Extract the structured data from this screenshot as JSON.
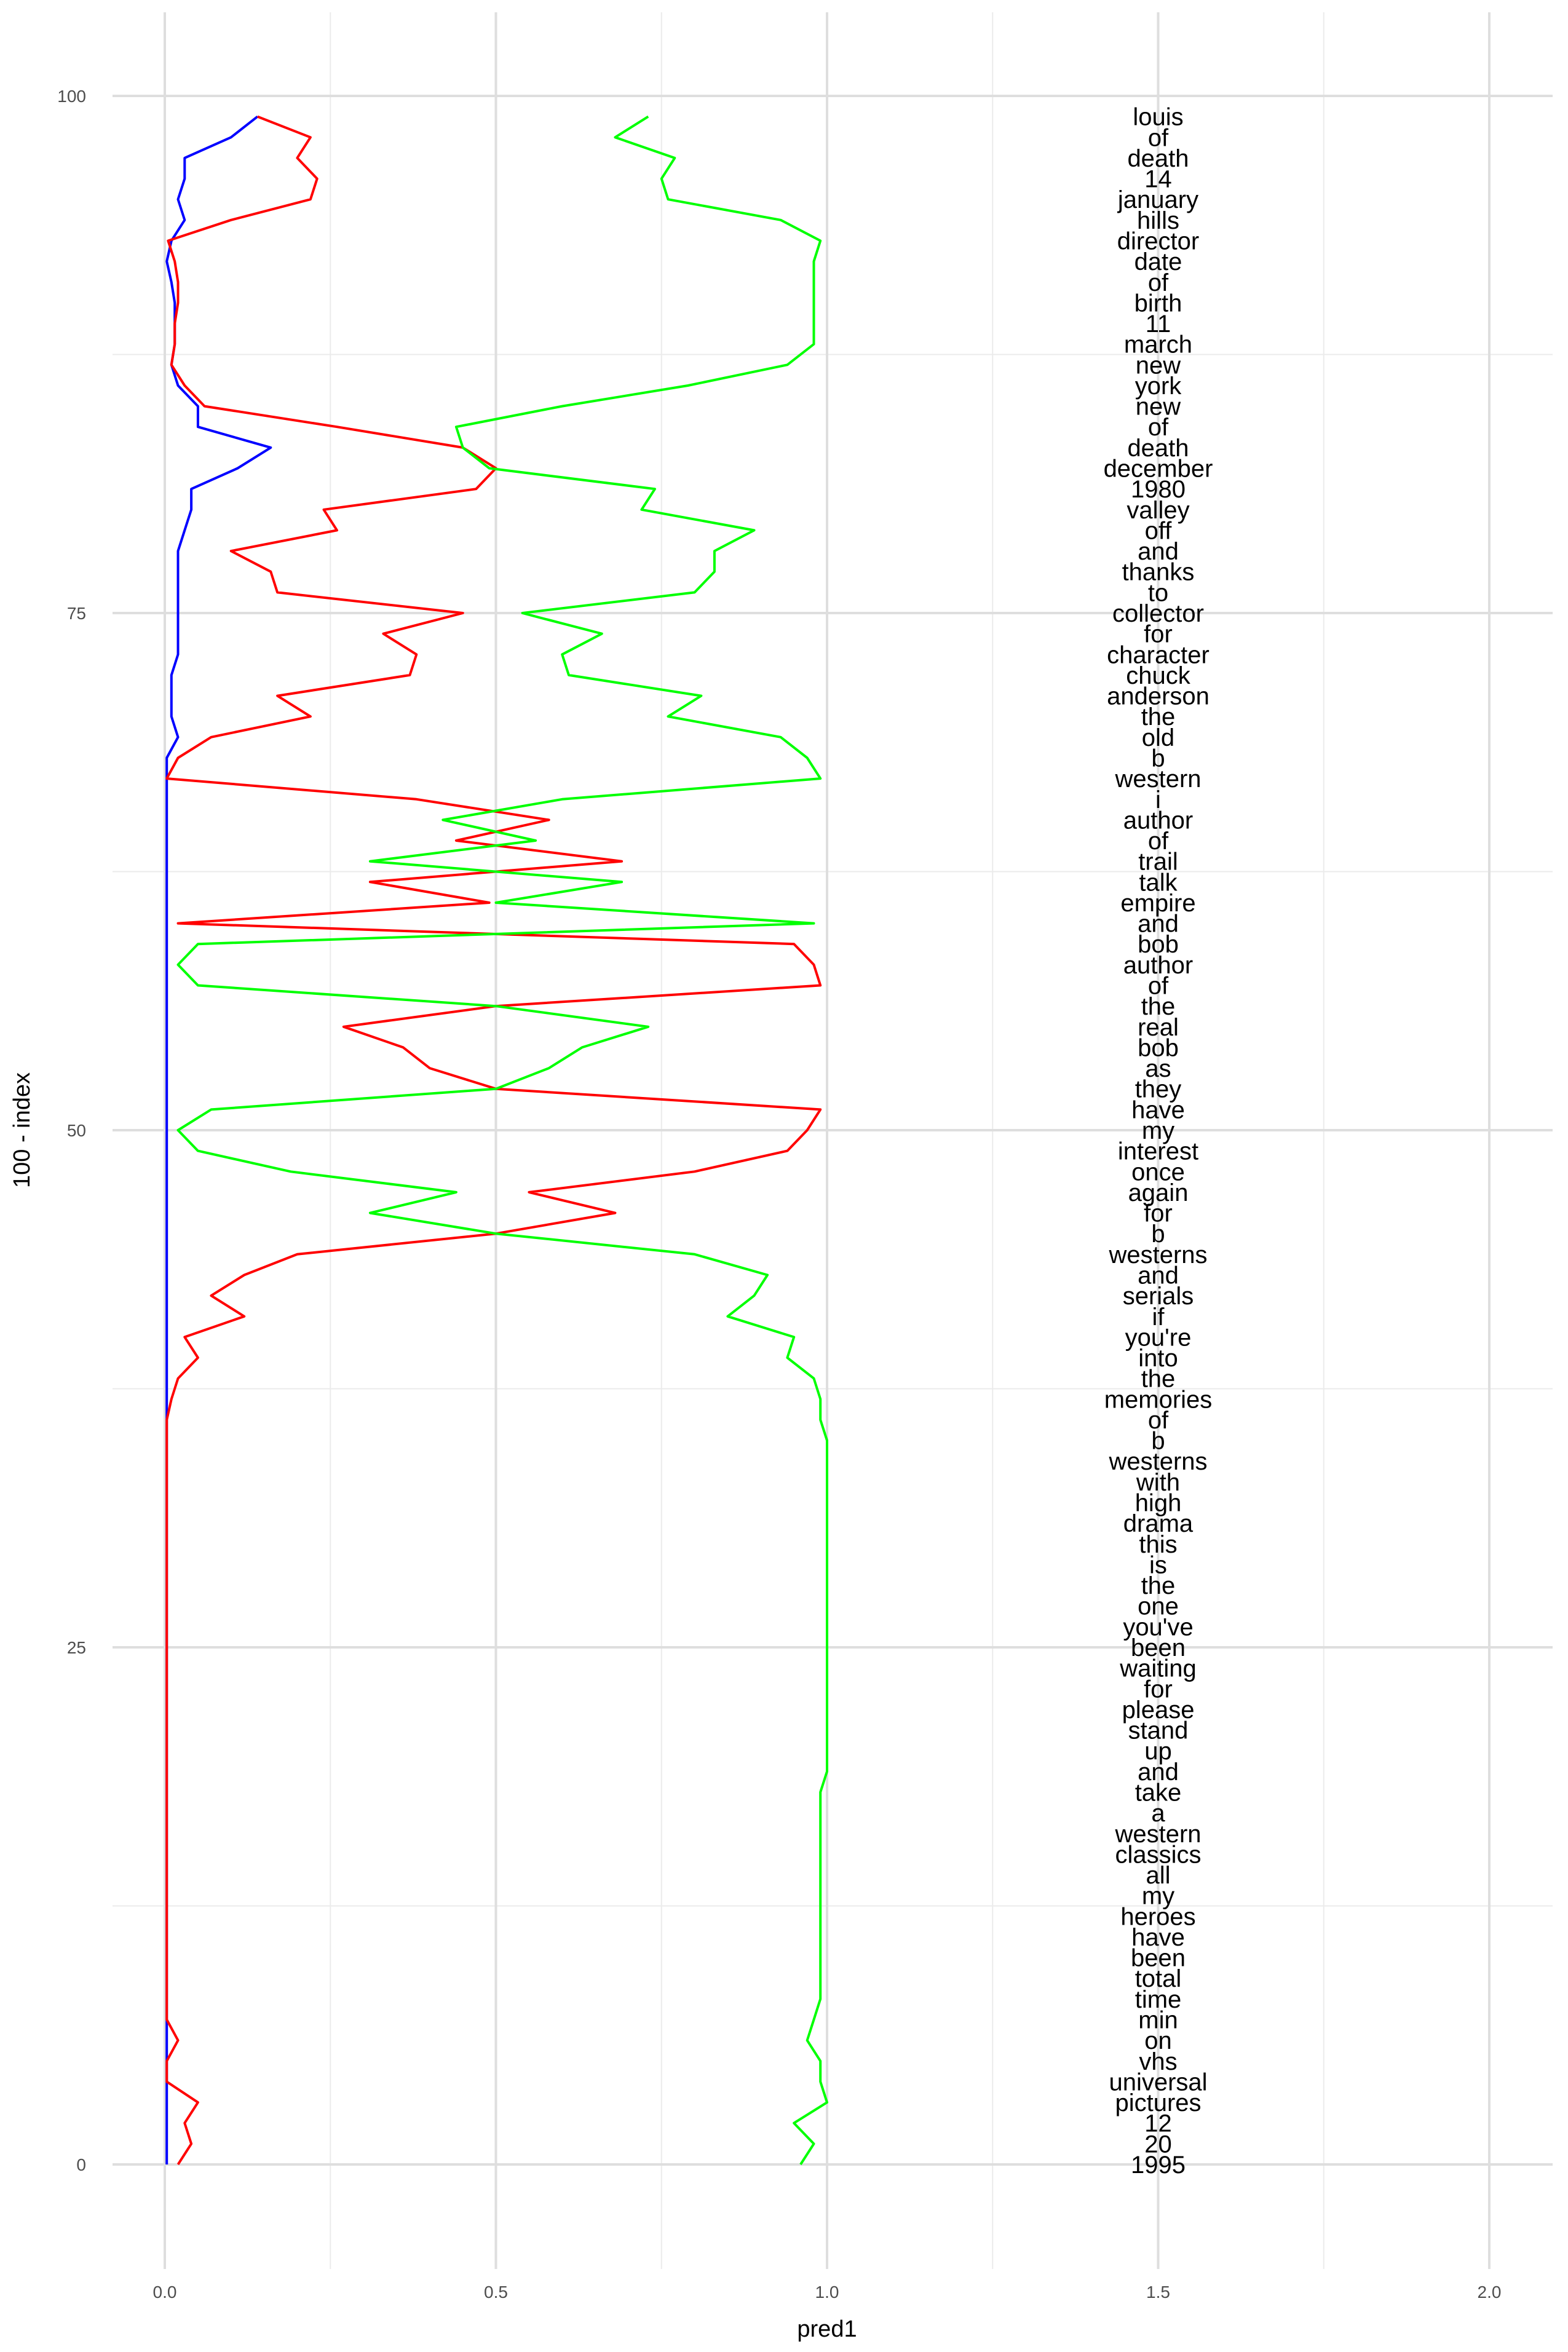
{
  "chart_data": {
    "type": "line",
    "title": "",
    "xlabel": "pred1",
    "ylabel": "100 - index",
    "xlim": [
      -0.08,
      2.1
    ],
    "ylim": [
      -5,
      102
    ],
    "x_ticks": [
      0.0,
      0.5,
      1.0,
      1.5,
      2.0
    ],
    "x_tick_labels": [
      "0.0",
      "0.5",
      "1.0",
      "1.5",
      "2.0"
    ],
    "y_ticks": [
      0,
      25,
      50,
      75,
      100
    ],
    "y_tick_labels": [
      "0",
      "25",
      "50",
      "75",
      "100"
    ],
    "grid": true,
    "legend": "none",
    "colors": {
      "series1": "#0000ff",
      "series2": "#ff0000",
      "series3": "#00ff00"
    },
    "y": [
      99,
      98,
      97,
      96,
      95,
      94,
      93,
      92,
      91,
      90,
      89,
      88,
      87,
      86,
      85,
      84,
      83,
      82,
      81,
      80,
      79,
      78,
      77,
      76,
      75,
      74,
      73,
      72,
      71,
      70,
      69,
      68,
      67,
      66,
      65,
      64,
      63,
      62,
      61,
      60,
      59,
      58,
      57,
      56,
      55,
      54,
      53,
      52,
      51,
      50,
      49,
      48,
      47,
      46,
      45,
      44,
      43,
      42,
      41,
      40,
      39,
      38,
      37,
      36,
      35,
      34,
      33,
      32,
      31,
      30,
      29,
      28,
      27,
      26,
      25,
      24,
      23,
      22,
      21,
      20,
      19,
      18,
      17,
      16,
      15,
      14,
      13,
      12,
      11,
      10,
      9,
      8,
      7,
      6,
      5,
      4,
      3,
      2,
      1,
      0
    ],
    "series": [
      {
        "color": "#0000ff",
        "values": [
          0.14,
          0.1,
          0.03,
          0.03,
          0.02,
          0.03,
          0.01,
          0.003,
          0.01,
          0.015,
          0.015,
          0.015,
          0.01,
          0.02,
          0.05,
          0.05,
          0.16,
          0.11,
          0.04,
          0.04,
          0.03,
          0.02,
          0.02,
          0.02,
          0.02,
          0.02,
          0.02,
          0.01,
          0.01,
          0.01,
          0.02,
          0.003,
          0.003,
          0.003,
          0.003,
          0.003,
          0.003,
          0.003,
          0.003,
          0.003,
          0.003,
          0.003,
          0.003,
          0.003,
          0.003,
          0.003,
          0.003,
          0.003,
          0.003,
          0.003,
          0.003,
          0.003,
          0.003,
          0.003,
          0.003,
          0.003,
          0.003,
          0.003,
          0.003,
          0.003,
          0.003,
          0.003,
          0.003,
          0.003,
          0.003,
          0.003,
          0.003,
          0.003,
          0.003,
          0.003,
          0.003,
          0.003,
          0.003,
          0.003,
          0.003,
          0.003,
          0.003,
          0.003,
          0.003,
          0.003,
          0.003,
          0.003,
          0.003,
          0.003,
          0.003,
          0.003,
          0.003,
          0.003,
          0.003,
          0.003,
          0.003,
          0.003,
          0.003,
          0.003,
          0.003,
          0.003,
          0.003,
          0.003,
          0.003,
          0.003
        ]
      },
      {
        "color": "#ff0000",
        "values": [
          0.14,
          0.22,
          0.2,
          0.23,
          0.22,
          0.1,
          0.005,
          0.015,
          0.02,
          0.02,
          0.015,
          0.015,
          0.01,
          0.03,
          0.06,
          0.26,
          0.45,
          0.5,
          0.47,
          0.24,
          0.26,
          0.1,
          0.16,
          0.17,
          0.45,
          0.33,
          0.38,
          0.37,
          0.17,
          0.22,
          0.07,
          0.02,
          0.003,
          0.38,
          0.58,
          0.44,
          0.69,
          0.31,
          0.49,
          0.02,
          0.95,
          0.98,
          0.99,
          0.5,
          0.27,
          0.36,
          0.4,
          0.5,
          0.99,
          0.97,
          0.94,
          0.8,
          0.55,
          0.68,
          0.5,
          0.2,
          0.12,
          0.07,
          0.12,
          0.03,
          0.05,
          0.02,
          0.01,
          0.003,
          0.003,
          0.003,
          0.003,
          0.003,
          0.003,
          0.003,
          0.003,
          0.003,
          0.003,
          0.003,
          0.003,
          0.003,
          0.003,
          0.003,
          0.003,
          0.003,
          0.003,
          0.003,
          0.003,
          0.003,
          0.003,
          0.003,
          0.003,
          0.003,
          0.003,
          0.003,
          0.003,
          0.003,
          0.003,
          0.02,
          0.003,
          0.003,
          0.05,
          0.03,
          0.04,
          0.02
        ]
      },
      {
        "color": "#00ff00",
        "values": [
          0.73,
          0.68,
          0.77,
          0.75,
          0.76,
          0.93,
          0.99,
          0.98,
          0.98,
          0.98,
          0.98,
          0.98,
          0.94,
          0.79,
          0.6,
          0.44,
          0.45,
          0.49,
          0.74,
          0.72,
          0.89,
          0.83,
          0.83,
          0.8,
          0.54,
          0.66,
          0.6,
          0.61,
          0.81,
          0.76,
          0.93,
          0.97,
          0.99,
          0.6,
          0.42,
          0.56,
          0.31,
          0.69,
          0.5,
          0.98,
          0.05,
          0.02,
          0.05,
          0.5,
          0.73,
          0.63,
          0.58,
          0.5,
          0.07,
          0.02,
          0.05,
          0.19,
          0.44,
          0.31,
          0.5,
          0.8,
          0.91,
          0.89,
          0.85,
          0.95,
          0.94,
          0.98,
          0.99,
          0.99,
          1.0,
          1.0,
          1.0,
          1.0,
          1.0,
          1.0,
          1.0,
          1.0,
          1.0,
          1.0,
          1.0,
          1.0,
          1.0,
          1.0,
          1.0,
          1.0,
          1.0,
          0.99,
          0.99,
          0.99,
          0.99,
          0.99,
          0.99,
          0.99,
          0.99,
          0.99,
          0.99,
          0.99,
          0.98,
          0.97,
          0.99,
          0.99,
          1.0,
          0.95,
          0.98,
          0.96
        ]
      }
    ],
    "text_labels": {
      "x": 1.5,
      "words": [
        "louis",
        "of",
        "death",
        "14",
        "january",
        "hills",
        "director",
        "date",
        "of",
        "birth",
        "11",
        "march",
        "new",
        "york",
        "new",
        "of",
        "death",
        "december",
        "1980",
        "valley",
        "off",
        "and",
        "thanks",
        "to",
        "collector",
        "for",
        "character",
        "chuck",
        "anderson",
        "the",
        "old",
        "b",
        "western",
        "i",
        "author",
        "of",
        "trail",
        "talk",
        "empire",
        "and",
        "bob",
        "author",
        "of",
        "the",
        "real",
        "bob",
        "as",
        "they",
        "have",
        "my",
        "interest",
        "once",
        "again",
        "for",
        "b",
        "westerns",
        "and",
        "serials",
        "if",
        "you're",
        "into",
        "the",
        "memories",
        "of",
        "b",
        "westerns",
        "with",
        "high",
        "drama",
        "this",
        "is",
        "the",
        "one",
        "you've",
        "been",
        "waiting",
        "for",
        "please",
        "stand",
        "up",
        "and",
        "take",
        "a",
        "western",
        "classics",
        "all",
        "my",
        "heroes",
        "have",
        "been",
        "total",
        "time",
        "min",
        "on",
        "vhs",
        "universal",
        "pictures",
        "12",
        "20",
        "1995"
      ]
    }
  }
}
